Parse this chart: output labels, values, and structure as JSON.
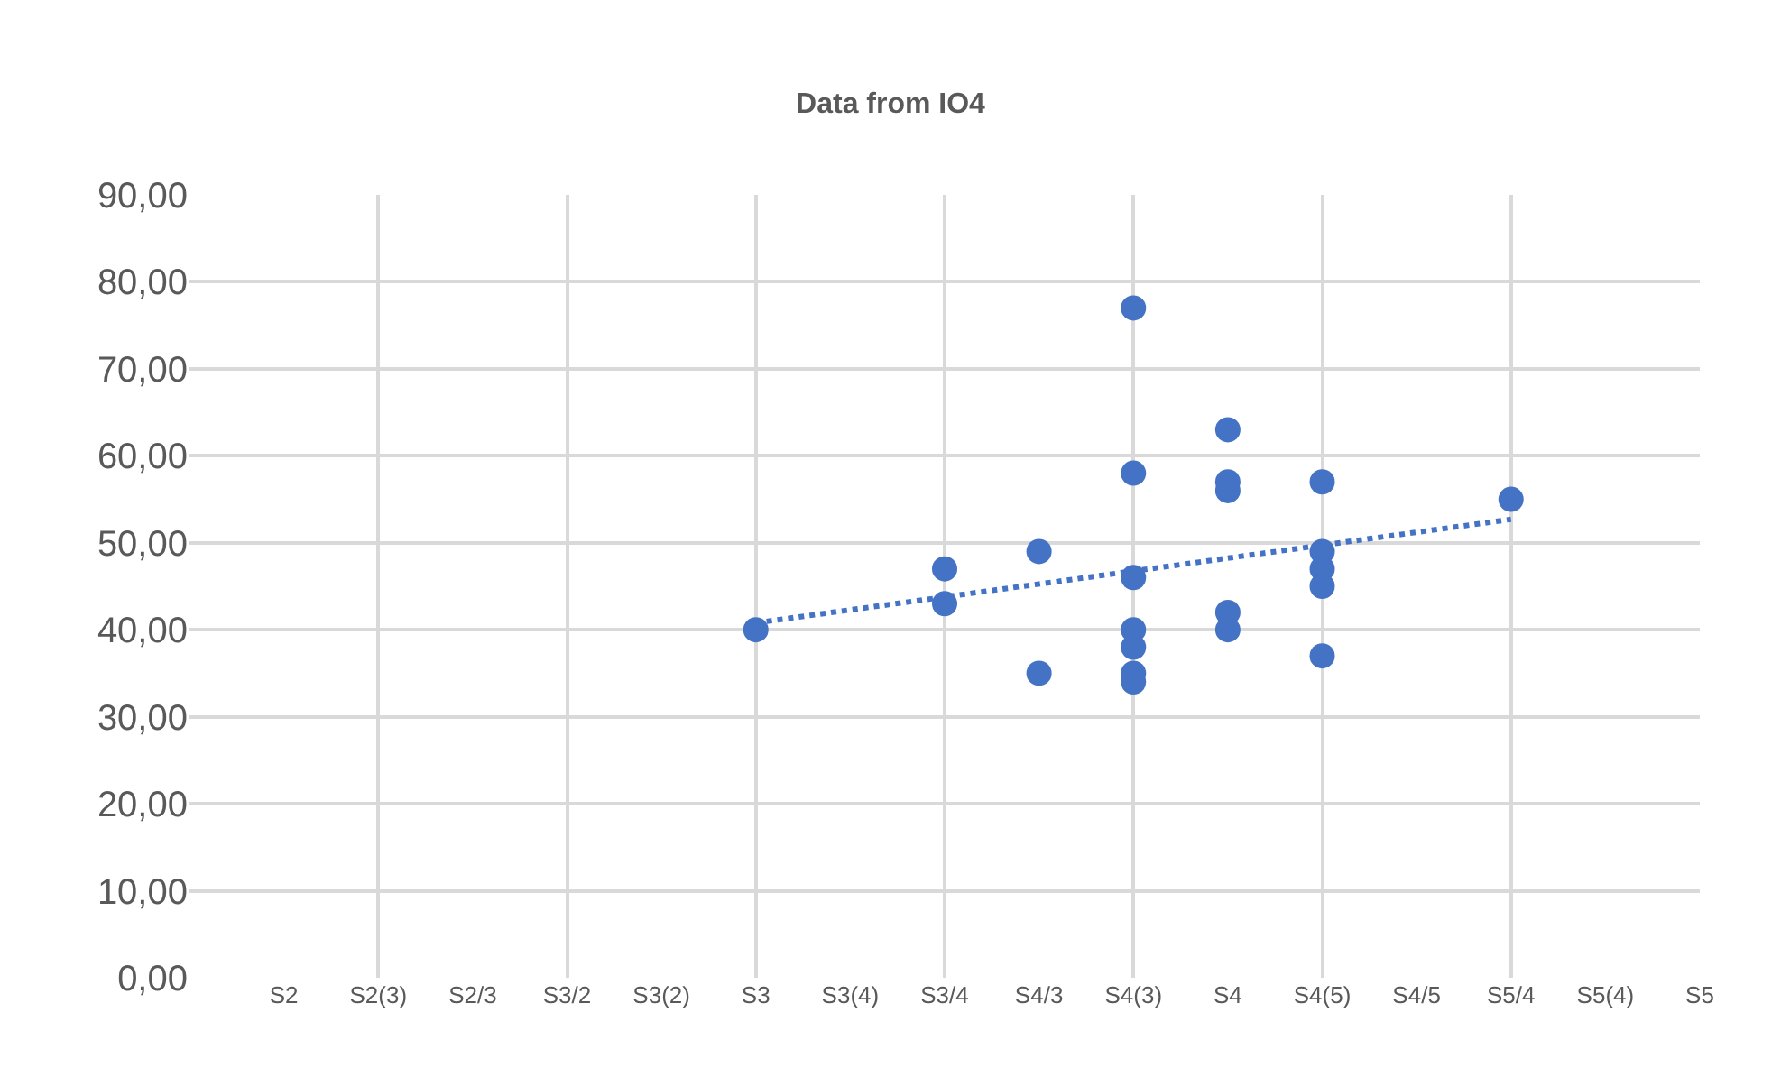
{
  "chart_data": {
    "type": "scatter",
    "title": "Data from IO4",
    "marker": "circle",
    "grid": true,
    "categories": [
      null,
      "S2",
      "S2(3)",
      "S2/3",
      "S3/2",
      "S3(2)",
      "S3",
      "S3(4)",
      "S3/4",
      "S4/3",
      "S4(3)",
      "S4",
      "S4(5)",
      "S4/5",
      "S5/4",
      "S5(4)",
      "S5"
    ],
    "ylim": [
      0,
      90
    ],
    "yticks": [
      {
        "value": 0,
        "label": "0,00"
      },
      {
        "value": 10,
        "label": "10,00"
      },
      {
        "value": 20,
        "label": "20,00"
      },
      {
        "value": 30,
        "label": "30,00"
      },
      {
        "value": 40,
        "label": "40,00"
      },
      {
        "value": 50,
        "label": "50,00"
      },
      {
        "value": 60,
        "label": "60,00"
      },
      {
        "value": 70,
        "label": "70,00"
      },
      {
        "value": 80,
        "label": "80,00"
      },
      {
        "value": 90,
        "label": "90,00"
      }
    ],
    "series": [
      {
        "color": "#4472c4",
        "x": [
          "S3",
          "S3/4",
          "S3/4",
          "S4/3",
          "S4/3",
          "S4(3)",
          "S4(3)",
          "S4(3)",
          "S4(3)",
          "S4(3)",
          "S4(3)",
          "S4(3)",
          "S4",
          "S4",
          "S4",
          "S4",
          "S4",
          "S4(5)",
          "S4(5)",
          "S4(5)",
          "S4(5)",
          "S4(5)",
          "S5/4"
        ],
        "values": [
          40,
          47,
          43,
          49,
          35,
          77,
          58,
          46,
          40,
          38,
          35,
          34,
          63,
          57,
          56,
          42,
          40,
          57,
          49,
          47,
          45,
          37,
          55
        ]
      },
      {
        "type": "line",
        "color": "#4472c4",
        "line_style": "dotted",
        "marker": "none",
        "x": [
          "S3",
          "S5/4"
        ],
        "values": [
          40.8,
          52.7
        ]
      }
    ]
  }
}
